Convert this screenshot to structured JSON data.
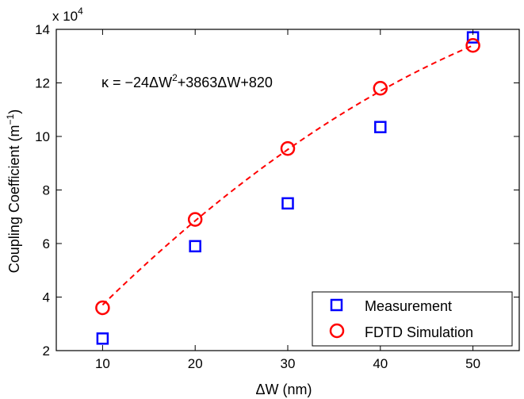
{
  "chart_data": {
    "type": "scatter",
    "title": "",
    "xlabel": "ΔW (nm)",
    "ylabel_main": "Coupling Coefficient (m",
    "ylabel_sup": "−1",
    "ylabel_close": ")",
    "y_multiplier": "x 10",
    "y_multiplier_exp": "4",
    "xlim": [
      5,
      55
    ],
    "ylim": [
      2,
      14
    ],
    "x_ticks": [
      10,
      20,
      30,
      40,
      50
    ],
    "y_ticks": [
      2,
      4,
      6,
      8,
      10,
      12,
      14
    ],
    "grid": false,
    "legend_position": "bottom-right",
    "series": [
      {
        "name": "Measurement",
        "marker": "square",
        "color": "#0000ff",
        "x": [
          10,
          20,
          30,
          40,
          50
        ],
        "y": [
          2.45,
          5.9,
          7.5,
          10.35,
          13.7
        ]
      },
      {
        "name": "FDTD Simulation",
        "marker": "circle",
        "color": "#ff0000",
        "x": [
          10,
          20,
          30,
          40,
          50
        ],
        "y": [
          3.6,
          6.9,
          9.55,
          11.8,
          13.4
        ]
      }
    ],
    "fit": {
      "style": "dashed",
      "color": "#ff0000",
      "coefficients": {
        "a": -24,
        "b": 3863,
        "c": 820
      },
      "scale": 10000,
      "x_range": [
        10,
        50
      ]
    },
    "annotation": {
      "prefix": "κ = −24ΔW",
      "sup1": "2",
      "rest": "+3863ΔW+820"
    }
  }
}
